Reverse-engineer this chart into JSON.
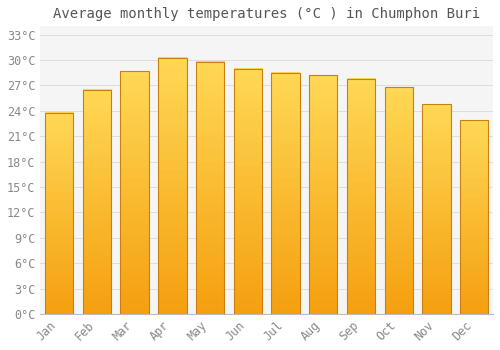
{
  "title": "Average monthly temperatures (°C ) in Chumphon Buri",
  "months": [
    "Jan",
    "Feb",
    "Mar",
    "Apr",
    "May",
    "Jun",
    "Jul",
    "Aug",
    "Sep",
    "Oct",
    "Nov",
    "Dec"
  ],
  "values": [
    23.8,
    26.5,
    28.7,
    30.3,
    29.8,
    29.0,
    28.5,
    28.2,
    27.8,
    26.8,
    24.8,
    22.9
  ],
  "bar_color_bottom": "#F5A010",
  "bar_color_top": "#FFD855",
  "bar_edge_color": "#C88010",
  "ylim": [
    0,
    34
  ],
  "yticks": [
    0,
    3,
    6,
    9,
    12,
    15,
    18,
    21,
    24,
    27,
    30,
    33
  ],
  "ytick_labels": [
    "0°C",
    "3°C",
    "6°C",
    "9°C",
    "12°C",
    "15°C",
    "18°C",
    "21°C",
    "24°C",
    "27°C",
    "30°C",
    "33°C"
  ],
  "background_color": "#FFFFFF",
  "plot_bg_color": "#F5F5F5",
  "grid_color": "#DDDDDD",
  "font_family": "monospace",
  "title_fontsize": 10,
  "tick_fontsize": 8.5,
  "bar_width": 0.75,
  "n_gradient_steps": 50
}
